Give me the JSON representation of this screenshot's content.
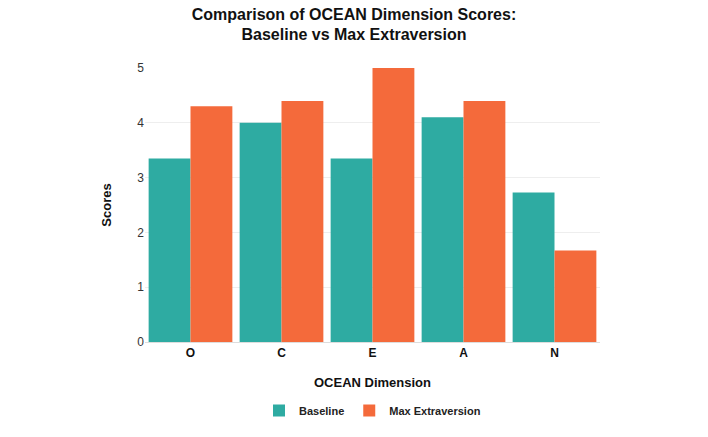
{
  "chart_data": {
    "type": "bar",
    "title": "Comparison of OCEAN Dimension Scores:\nBaseline vs Max Extraversion",
    "x_label": "OCEAN Dimension",
    "y_label": "Scores",
    "categories": [
      "O",
      "C",
      "E",
      "A",
      "N"
    ],
    "series": [
      {
        "name": "Baseline",
        "color": "#2eaba2",
        "values": [
          3.35,
          4.0,
          3.35,
          4.1,
          2.73
        ]
      },
      {
        "name": "Max Extraversion",
        "color": "#f46a3b",
        "values": [
          4.3,
          4.4,
          5.0,
          4.4,
          1.67
        ]
      }
    ],
    "ylim": [
      0,
      5
    ],
    "yticks": [
      0,
      1,
      2,
      3,
      4,
      5
    ],
    "grid": true,
    "legend": "bottom"
  }
}
